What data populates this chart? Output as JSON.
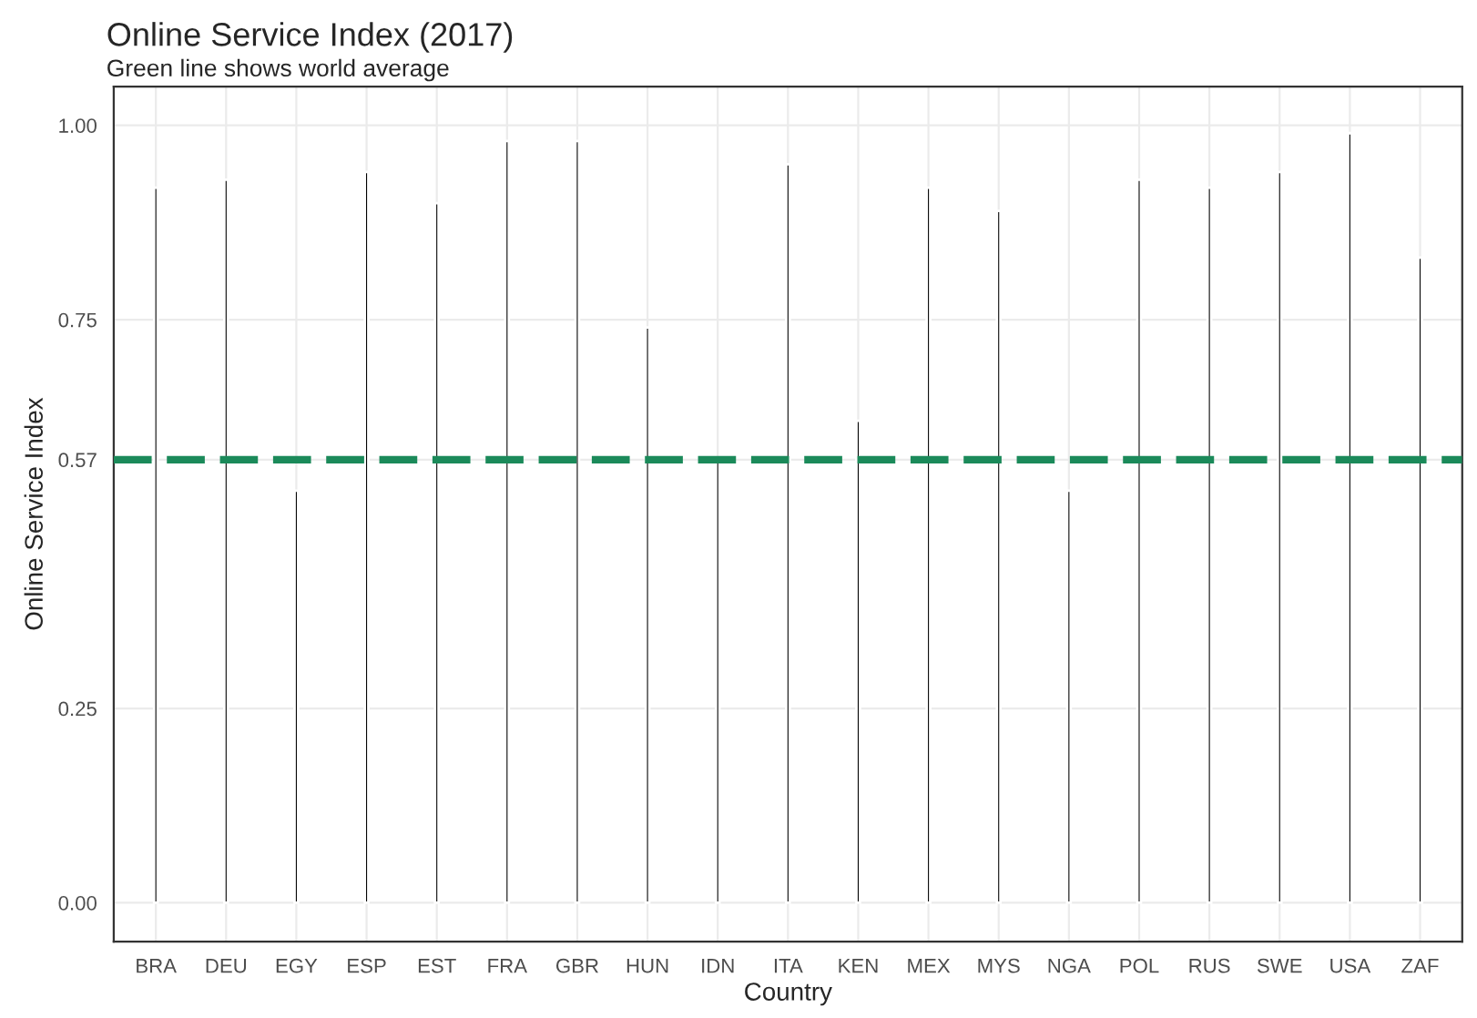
{
  "chart_data": {
    "type": "bar",
    "title": "Online Service Index (2017)",
    "subtitle": "Green line shows world average",
    "xlabel": "Country",
    "ylabel": "Online Service Index",
    "categories": [
      "BRA",
      "DEU",
      "EGY",
      "ESP",
      "EST",
      "FRA",
      "GBR",
      "HUN",
      "IDN",
      "ITA",
      "KEN",
      "MEX",
      "MYS",
      "NGA",
      "POL",
      "RUS",
      "SWE",
      "USA",
      "ZAF"
    ],
    "values": [
      0.92,
      0.93,
      0.53,
      0.94,
      0.9,
      0.98,
      0.98,
      0.74,
      0.57,
      0.95,
      0.62,
      0.92,
      0.89,
      0.53,
      0.93,
      0.92,
      0.94,
      0.99,
      0.83
    ],
    "color": "#000000",
    "ylim": [
      -0.05,
      1.05
    ],
    "yticks": [
      {
        "value": 0,
        "label": "0.00"
      },
      {
        "value": 0.25,
        "label": "0.25"
      },
      {
        "value": 0.57,
        "label": "0.57"
      },
      {
        "value": 0.75,
        "label": "0.75"
      },
      {
        "value": 1,
        "label": "1.00"
      }
    ],
    "ref_lines": [
      {
        "axis": "y",
        "value": 0.57,
        "color": "#1b8a5a",
        "line_style": "dashed"
      }
    ],
    "grid": true
  }
}
